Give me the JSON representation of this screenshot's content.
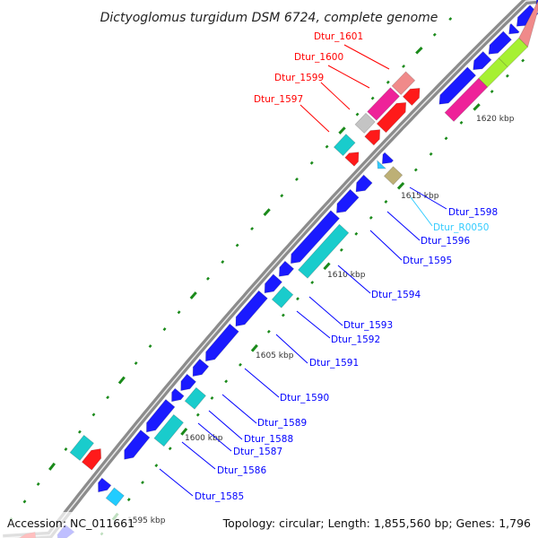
{
  "title": "Dictyoglomus turgidum DSM 6724, complete genome",
  "footer": {
    "accession": "Accession: NC_011661",
    "summary": "Topology: circular; Length: 1,855,560 bp; Genes: 1,796"
  },
  "colors": {
    "backbone": "#8c8c8c",
    "ticks": "#1a8a1a",
    "label_forward": "#ff0000",
    "label_reverse": "#0000ff",
    "label_rna": "#33ccff"
  },
  "kbp_ticks": [
    {
      "kbp": 1595,
      "text": "1595 kbp"
    },
    {
      "kbp": 1600,
      "text": "1600 kbp"
    },
    {
      "kbp": 1605,
      "text": "1605 kbp"
    },
    {
      "kbp": 1610,
      "text": "1610 kbp"
    },
    {
      "kbp": 1615,
      "text": "1615 kbp"
    },
    {
      "kbp": 1620,
      "text": "1620 kbp"
    }
  ],
  "labels": [
    {
      "text": "Dtur_1601"
    },
    {
      "text": "Dtur_1600"
    },
    {
      "text": "Dtur_1599"
    },
    {
      "text": "Dtur_1597"
    },
    {
      "text": "Dtur_1598"
    },
    {
      "text": "Dtur_R0050"
    },
    {
      "text": "Dtur_1596"
    },
    {
      "text": "Dtur_1595"
    },
    {
      "text": "Dtur_1594"
    },
    {
      "text": "Dtur_1593"
    },
    {
      "text": "Dtur_1592"
    },
    {
      "text": "Dtur_1591"
    },
    {
      "text": "Dtur_1590"
    },
    {
      "text": "Dtur_1589"
    },
    {
      "text": "Dtur_1588"
    },
    {
      "text": "Dtur_1587"
    },
    {
      "text": "Dtur_1586"
    },
    {
      "text": "Dtur_1585"
    }
  ],
  "features": [
    {
      "ring": "rev1",
      "start": 1592.4,
      "end": 1593.3,
      "color": "#1a1aff",
      "shape": "arrow"
    },
    {
      "ring": "rev1",
      "start": 1595.4,
      "end": 1596.0,
      "color": "#1a1aff",
      "shape": "arrow"
    },
    {
      "ring": "rev1",
      "start": 1597.3,
      "end": 1598.8,
      "color": "#1a1aff",
      "shape": "arrow"
    },
    {
      "ring": "rev1",
      "start": 1598.9,
      "end": 1600.6,
      "color": "#1a1aff",
      "shape": "arrow"
    },
    {
      "ring": "rev1",
      "start": 1600.7,
      "end": 1601.25,
      "color": "#1a1aff",
      "shape": "arrow"
    },
    {
      "ring": "rev1",
      "start": 1601.35,
      "end": 1602.1,
      "color": "#1a1aff",
      "shape": "arrow"
    },
    {
      "ring": "rev1",
      "start": 1602.2,
      "end": 1603.0,
      "color": "#1a1aff",
      "shape": "arrow"
    },
    {
      "ring": "rev1",
      "start": 1603.1,
      "end": 1605.1,
      "color": "#1a1aff",
      "shape": "arrow"
    },
    {
      "ring": "rev1",
      "start": 1605.2,
      "end": 1607.1,
      "color": "#1a1aff",
      "shape": "arrow"
    },
    {
      "ring": "rev1",
      "start": 1607.2,
      "end": 1608.1,
      "color": "#1a1aff",
      "shape": "arrow"
    },
    {
      "ring": "rev1",
      "start": 1608.2,
      "end": 1608.9,
      "color": "#1a1aff",
      "shape": "arrow"
    },
    {
      "ring": "rev1",
      "start": 1609.0,
      "end": 1612.0,
      "color": "#1a1aff",
      "shape": "arrow"
    },
    {
      "ring": "rev1",
      "start": 1612.1,
      "end": 1613.3,
      "color": "#1a1aff",
      "shape": "arrow"
    },
    {
      "ring": "rev1",
      "start": 1613.4,
      "end": 1614.2,
      "color": "#1a1aff",
      "shape": "arrow"
    },
    {
      "ring": "rev1",
      "start": 1614.85,
      "end": 1615.1,
      "color": "#33ccff",
      "shape": "arrow"
    },
    {
      "ring": "rev1",
      "start": 1615.15,
      "end": 1615.6,
      "color": "#1a1aff",
      "shape": "arrow"
    },
    {
      "ring": "rev1",
      "start": 1618.9,
      "end": 1621.0,
      "color": "#1a1aff",
      "shape": "arrow"
    },
    {
      "ring": "rev1",
      "start": 1621.1,
      "end": 1622.0,
      "color": "#1a1aff",
      "shape": "arrow"
    },
    {
      "ring": "rev1",
      "start": 1622.1,
      "end": 1623.3,
      "color": "#1a1aff",
      "shape": "arrow"
    },
    {
      "ring": "rev1",
      "start": 1623.4,
      "end": 1623.8,
      "color": "#1a1aff",
      "shape": "arrow"
    },
    {
      "ring": "rev1",
      "start": 1623.9,
      "end": 1625.0,
      "color": "#1a1aff",
      "shape": "arrow"
    },
    {
      "ring": "rev1",
      "start": 1625.1,
      "end": 1626.5,
      "color": "#1a1aff",
      "shape": "arrow"
    },
    {
      "ring": "rev2",
      "start": 1595.4,
      "end": 1596.0,
      "color": "#22ccff",
      "shape": "box"
    },
    {
      "ring": "rev2",
      "start": 1598.9,
      "end": 1600.3,
      "color": "#19cccc",
      "shape": "box"
    },
    {
      "ring": "rev2",
      "start": 1601.1,
      "end": 1601.9,
      "color": "#19cccc",
      "shape": "box"
    },
    {
      "ring": "rev2",
      "start": 1607.2,
      "end": 1608.0,
      "color": "#19cccc",
      "shape": "box"
    },
    {
      "ring": "rev2",
      "start": 1609.0,
      "end": 1611.8,
      "color": "#19cccc",
      "shape": "box"
    },
    {
      "ring": "rev2",
      "start": 1614.8,
      "end": 1615.4,
      "color": "#bdb076",
      "shape": "box"
    },
    {
      "ring": "rev2",
      "start": 1618.8,
      "end": 1621.0,
      "color": "#ee2299",
      "shape": "box"
    },
    {
      "ring": "rev2",
      "start": 1621.0,
      "end": 1622.3,
      "color": "#a6f032",
      "shape": "box"
    },
    {
      "ring": "rev2",
      "start": 1622.3,
      "end": 1623.6,
      "color": "#a6f032",
      "shape": "box"
    },
    {
      "ring": "rev2",
      "start": 1623.6,
      "end": 1626.0,
      "color": "#f08a8a",
      "shape": "box"
    },
    {
      "ring": "fwd1",
      "start": 1591.4,
      "end": 1592.2,
      "color": "#ff1a1a",
      "shape": "arrow"
    },
    {
      "ring": "fwd1",
      "start": 1596.0,
      "end": 1597.0,
      "color": "#ff1a1a",
      "shape": "arrow"
    },
    {
      "ring": "fwd1",
      "start": 1614.2,
      "end": 1614.8,
      "color": "#ff1a1a",
      "shape": "arrow"
    },
    {
      "ring": "fwd1",
      "start": 1615.5,
      "end": 1616.2,
      "color": "#ff1a1a",
      "shape": "arrow"
    },
    {
      "ring": "fwd1",
      "start": 1616.3,
      "end": 1617.9,
      "color": "#ff1a1a",
      "shape": "arrow"
    },
    {
      "ring": "fwd1",
      "start": 1618.0,
      "end": 1618.8,
      "color": "#ff1a1a",
      "shape": "arrow"
    },
    {
      "ring": "fwd2",
      "start": 1596.0,
      "end": 1597.0,
      "color": "#19cccc",
      "shape": "box"
    },
    {
      "ring": "fwd2",
      "start": 1614.2,
      "end": 1615.0,
      "color": "#19cccc",
      "shape": "box"
    },
    {
      "ring": "fwd2",
      "start": 1615.6,
      "end": 1616.3,
      "color": "#c4c4c4",
      "shape": "box"
    },
    {
      "ring": "fwd2",
      "start": 1616.4,
      "end": 1617.9,
      "color": "#ee2299",
      "shape": "box"
    },
    {
      "ring": "fwd2",
      "start": 1618.0,
      "end": 1618.9,
      "color": "#f08a8a",
      "shape": "box"
    }
  ]
}
